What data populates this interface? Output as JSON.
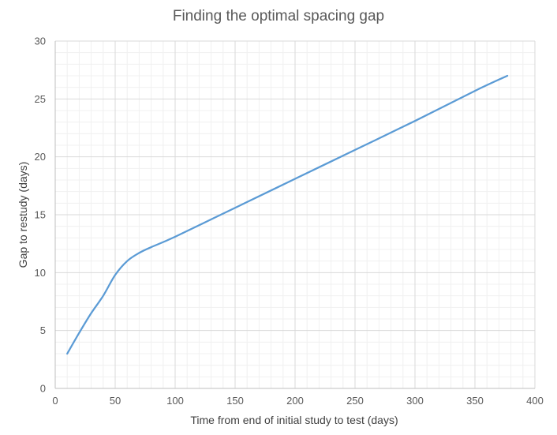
{
  "chart_data": {
    "type": "line",
    "title": "Finding the optimal spacing gap",
    "xlabel": "Time from end of initial study to test (days)",
    "ylabel": "Gap to restudy (days)",
    "xlim": [
      0,
      400
    ],
    "ylim": [
      0,
      30
    ],
    "x_ticks": [
      0,
      50,
      100,
      150,
      200,
      250,
      300,
      350,
      400
    ],
    "y_ticks": [
      0,
      5,
      10,
      15,
      20,
      25,
      30
    ],
    "grid": true,
    "minor_grid": true,
    "legend": "none",
    "series": [
      {
        "color": "#5b9bd5",
        "x": [
          10,
          20,
          30,
          40,
          50,
          60,
          70,
          80,
          100,
          150,
          200,
          250,
          300,
          350,
          377
        ],
        "y": [
          3,
          4.8,
          6.5,
          8.0,
          9.8,
          11.0,
          11.7,
          12.2,
          13.1,
          15.6,
          18.1,
          20.6,
          23.1,
          25.7,
          27
        ]
      }
    ]
  },
  "colors": {
    "major_grid": "#d9d9d9",
    "minor_grid": "#f0f0f0",
    "axis_line": "#bfbfbf"
  }
}
